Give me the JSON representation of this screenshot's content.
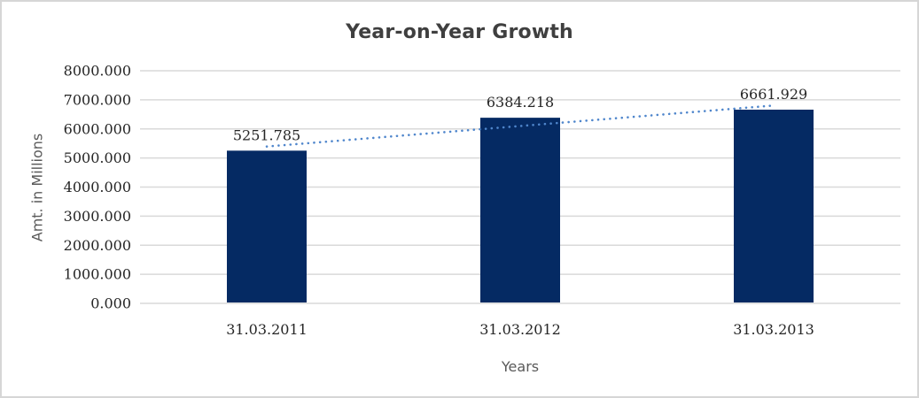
{
  "chart_data": {
    "type": "bar",
    "title": "Year-on-Year Growth",
    "categories": [
      "31.03.2011",
      "31.03.2012",
      "31.03.2013"
    ],
    "values": [
      5251.785,
      6384.218,
      6661.929
    ],
    "data_labels": [
      "5251.785",
      "6384.218",
      "6661.929"
    ],
    "xlabel": "Years",
    "ylabel": "Amt. in Millions",
    "ylim": [
      0,
      8000
    ],
    "ytick_step": 1000,
    "ytick_labels": [
      "0.000",
      "1000.000",
      "2000.000",
      "3000.000",
      "4000.000",
      "5000.000",
      "6000.000",
      "7000.000",
      "8000.000"
    ],
    "grid": true,
    "legend": false,
    "trendline": {
      "style": "dotted",
      "span": "first-to-last-category",
      "fit": "linear"
    },
    "colors": {
      "bar": "#052a63",
      "trendline": "#4f86cc",
      "gridline": "#d9d9d9",
      "border": "#d6d6d6",
      "title_text": "#3f3f3f",
      "tick_text": "#262626",
      "axis_title_text": "#595959"
    }
  }
}
